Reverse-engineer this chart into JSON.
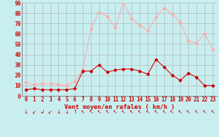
{
  "hours": [
    0,
    1,
    2,
    3,
    4,
    5,
    6,
    7,
    8,
    9,
    10,
    11,
    12,
    13,
    14,
    15,
    16,
    17,
    18,
    19,
    20,
    21,
    22,
    23
  ],
  "wind_avg": [
    6,
    7,
    6,
    6,
    6,
    6,
    7,
    24,
    24,
    30,
    23,
    25,
    26,
    26,
    24,
    21,
    35,
    28,
    20,
    15,
    22,
    18,
    10,
    10
  ],
  "wind_gust": [
    13,
    11,
    12,
    12,
    11,
    10,
    14,
    26,
    65,
    81,
    77,
    66,
    90,
    75,
    68,
    63,
    76,
    85,
    79,
    71,
    53,
    51,
    60,
    45
  ],
  "bg_color": "#c8eef0",
  "grid_color": "#aaaaaa",
  "line_avg_color": "#cc0000",
  "line_gust_color": "#ffaaaa",
  "xlabel": "Vent moyen/en rafales ( km/h )",
  "ylim": [
    0,
    90
  ],
  "yticks": [
    0,
    10,
    20,
    30,
    40,
    50,
    60,
    70,
    80,
    90
  ],
  "tick_fontsize": 5.5,
  "label_fontsize": 6.5,
  "wind_symbols": [
    "↓",
    "↙",
    "↲",
    "↙",
    "↓",
    "↓",
    "↑",
    "↖",
    "↖",
    "↖",
    "↖",
    "↖",
    "↖",
    "↖",
    "↖",
    "↖",
    "↖",
    "↖",
    "↖",
    "↖",
    "↖",
    "↖",
    "↖",
    "↖"
  ]
}
